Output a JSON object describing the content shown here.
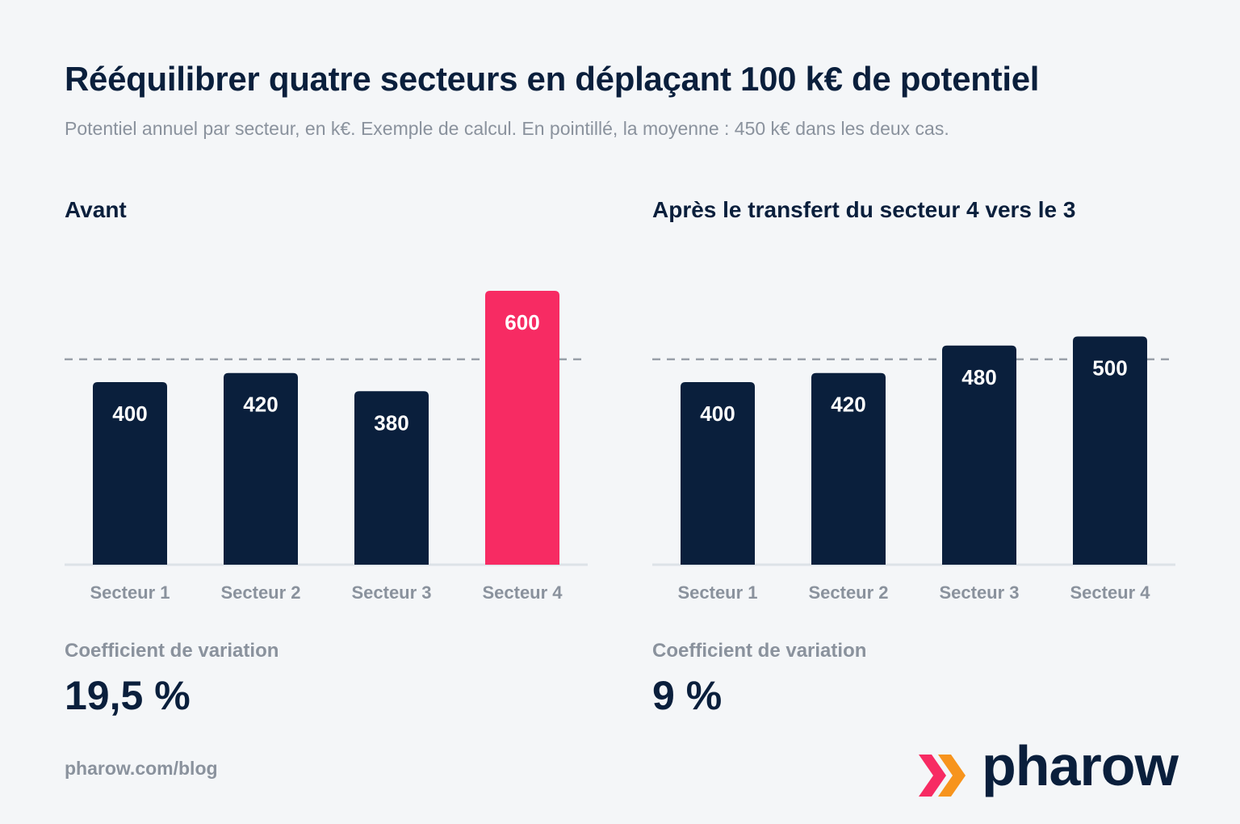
{
  "title": "Rééquilibrer quatre secteurs en déplaçant 100 k€ de potentiel",
  "subtitle": "Potentiel annuel par secteur, en k€. Exemple de calcul. En pointillé, la moyenne : 450 k€ dans les deux cas.",
  "colors": {
    "bar_default": "#0a1f3c",
    "bar_highlight": "#f72b63",
    "mean_line": "#9aa1aa",
    "baseline": "#dde2e7",
    "accent_orange": "#f7941d"
  },
  "chart_data": [
    {
      "type": "bar",
      "title": "Avant",
      "categories": [
        "Secteur 1",
        "Secteur 2",
        "Secteur 3",
        "Secteur 4"
      ],
      "values": [
        400,
        420,
        380,
        600
      ],
      "highlight_index": 3,
      "mean": 450,
      "ylim": [
        0,
        600
      ],
      "cv_label": "Coefficient de variation",
      "cv_value": "19,5 %"
    },
    {
      "type": "bar",
      "title": "Après le transfert du secteur 4 vers le 3",
      "categories": [
        "Secteur 1",
        "Secteur 2",
        "Secteur 3",
        "Secteur 4"
      ],
      "values": [
        400,
        420,
        480,
        500
      ],
      "highlight_index": null,
      "mean": 450,
      "ylim": [
        0,
        600
      ],
      "cv_label": "Coefficient de variation",
      "cv_value": "9 %"
    }
  ],
  "footer": {
    "url": "pharow.com/blog"
  },
  "logo": {
    "text": "pharow",
    "icon": "double-chevron-right-icon"
  }
}
